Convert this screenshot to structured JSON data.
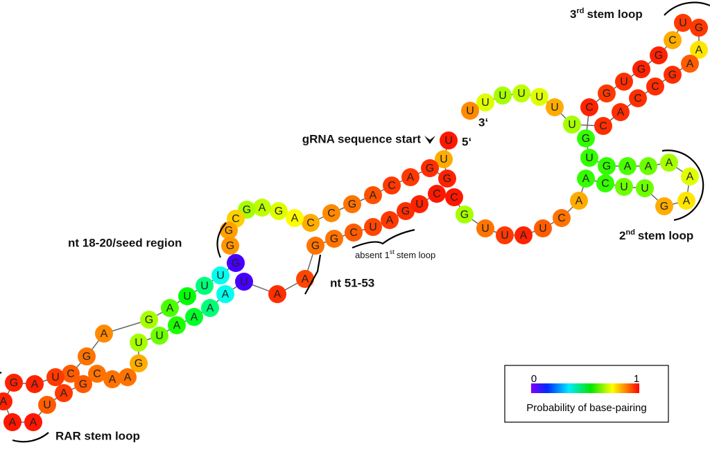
{
  "labels": {
    "gRNA_start": "gRNA sequence start",
    "five_prime": "5‘",
    "three_prime": "3‘",
    "stem3": {
      "pre": "3",
      "sup": "rd",
      "post": "stem loop"
    },
    "stem2": {
      "pre": "2",
      "sup": "nd",
      "post": "stem loop"
    },
    "seed": "nt 18-20/seed region",
    "absent": {
      "pre": "absent 1",
      "sup": "st",
      "post": "stem loop"
    },
    "nt51": "nt 51-53",
    "rar": "RAR stem loop"
  },
  "legend": {
    "min": 0,
    "max": 1,
    "title": "Probability of base-pairing"
  },
  "nodes": [
    {
      "base": "U",
      "p": 0.98
    },
    {
      "base": "U",
      "p": 0.85
    },
    {
      "base": "G",
      "p": 0.97
    },
    {
      "base": "G",
      "p": 0.96
    },
    {
      "base": "A",
      "p": 0.95
    },
    {
      "base": "C",
      "p": 0.95
    },
    {
      "base": "A",
      "p": 0.93
    },
    {
      "base": "G",
      "p": 0.9
    },
    {
      "base": "C",
      "p": 0.88
    },
    {
      "base": "C",
      "p": 0.85
    },
    {
      "base": "A",
      "p": 0.78
    },
    {
      "base": "G",
      "p": 0.75
    },
    {
      "base": "A",
      "p": 0.72
    },
    {
      "base": "G",
      "p": 0.7
    },
    {
      "base": "C",
      "p": 0.82
    },
    {
      "base": "G",
      "p": 0.86
    },
    {
      "base": "G",
      "p": 0.87
    },
    {
      "base": "G",
      "p": 0.05
    },
    {
      "base": "U",
      "p": 0.35
    },
    {
      "base": "U",
      "p": 0.45
    },
    {
      "base": "U",
      "p": 0.55
    },
    {
      "base": "A",
      "p": 0.62
    },
    {
      "base": "G",
      "p": 0.7
    },
    {
      "base": "A",
      "p": 0.88
    },
    {
      "base": "G",
      "p": 0.9
    },
    {
      "base": "C",
      "p": 0.92
    },
    {
      "base": "U",
      "p": 0.95
    },
    {
      "base": "A",
      "p": 0.97
    },
    {
      "base": "G",
      "p": 0.97
    },
    {
      "base": "A",
      "p": 0.97
    },
    {
      "base": "A",
      "p": 0.98
    },
    {
      "base": "A",
      "p": 0.98
    },
    {
      "base": "U",
      "p": 0.92
    },
    {
      "base": "A",
      "p": 0.95
    },
    {
      "base": "G",
      "p": 0.92
    },
    {
      "base": "C",
      "p": 0.9
    },
    {
      "base": "A",
      "p": 0.9
    },
    {
      "base": "A",
      "p": 0.9
    },
    {
      "base": "G",
      "p": 0.85
    },
    {
      "base": "U",
      "p": 0.7
    },
    {
      "base": "U",
      "p": 0.65
    },
    {
      "base": "A",
      "p": 0.58
    },
    {
      "base": "A",
      "p": 0.52
    },
    {
      "base": "A",
      "p": 0.45
    },
    {
      "base": "A",
      "p": 0.35
    },
    {
      "base": "U",
      "p": 0.05
    },
    {
      "base": "A",
      "p": 0.96
    },
    {
      "base": "A",
      "p": 0.94
    },
    {
      "base": "G",
      "p": 0.9
    },
    {
      "base": "G",
      "p": 0.9
    },
    {
      "base": "C",
      "p": 0.92
    },
    {
      "base": "U",
      "p": 0.94
    },
    {
      "base": "A",
      "p": 0.95
    },
    {
      "base": "G",
      "p": 0.96
    },
    {
      "base": "U",
      "p": 0.97
    },
    {
      "base": "C",
      "p": 0.98
    },
    {
      "base": "C",
      "p": 0.98
    },
    {
      "base": "G",
      "p": 0.7
    },
    {
      "base": "U",
      "p": 0.9
    },
    {
      "base": "U",
      "p": 0.95
    },
    {
      "base": "A",
      "p": 0.97
    },
    {
      "base": "U",
      "p": 0.92
    },
    {
      "base": "C",
      "p": 0.9
    },
    {
      "base": "A",
      "p": 0.85
    },
    {
      "base": "A",
      "p": 0.6
    },
    {
      "base": "C",
      "p": 0.6
    },
    {
      "base": "U",
      "p": 0.65
    },
    {
      "base": "U",
      "p": 0.65
    },
    {
      "base": "G",
      "p": 0.85
    },
    {
      "base": "A",
      "p": 0.8
    },
    {
      "base": "A",
      "p": 0.75
    },
    {
      "base": "A",
      "p": 0.7
    },
    {
      "base": "A",
      "p": 0.65
    },
    {
      "base": "A",
      "p": 0.62
    },
    {
      "base": "G",
      "p": 0.6
    },
    {
      "base": "U",
      "p": 0.6
    },
    {
      "base": "G",
      "p": 0.6
    },
    {
      "base": "C",
      "p": 0.97
    },
    {
      "base": "G",
      "p": 0.95
    },
    {
      "base": "U",
      "p": 0.96
    },
    {
      "base": "G",
      "p": 0.97
    },
    {
      "base": "G",
      "p": 0.97
    },
    {
      "base": "C",
      "p": 0.85
    },
    {
      "base": "U",
      "p": 0.95
    },
    {
      "base": "G",
      "p": 0.95
    },
    {
      "base": "A",
      "p": 0.8
    },
    {
      "base": "A",
      "p": 0.92
    },
    {
      "base": "G",
      "p": 0.96
    },
    {
      "base": "C",
      "p": 0.96
    },
    {
      "base": "C",
      "p": 0.96
    },
    {
      "base": "A",
      "p": 0.96
    },
    {
      "base": "C",
      "p": 0.96
    },
    {
      "base": "U",
      "p": 0.7
    },
    {
      "base": "U",
      "p": 0.85
    },
    {
      "base": "U",
      "p": 0.75
    },
    {
      "base": "U",
      "p": 0.72
    },
    {
      "base": "U",
      "p": 0.7
    },
    {
      "base": "U",
      "p": 0.75
    },
    {
      "base": "U",
      "p": 0.88
    }
  ]
}
